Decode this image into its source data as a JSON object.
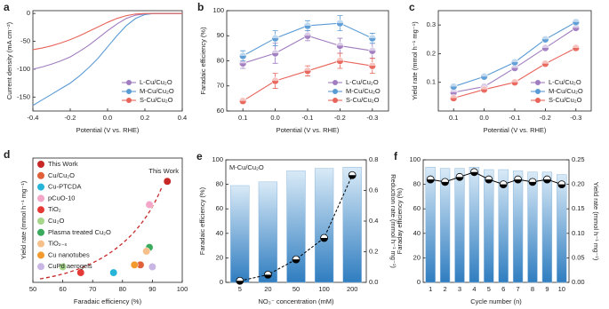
{
  "chart_data": [
    {
      "type": "line",
      "label": "a",
      "xlabel": "Potential (V vs. RHE)",
      "ylabel": "Current density (mA cm⁻²)",
      "x": [
        -0.4,
        -0.35,
        -0.3,
        -0.25,
        -0.2,
        -0.15,
        -0.1,
        -0.05,
        0,
        0.05,
        0.1,
        0.15,
        0.2,
        0.25,
        0.3,
        0.35,
        0.4
      ],
      "xlim": [
        -0.4,
        0.4
      ],
      "xticks": [
        -0.4,
        -0.2,
        {
          "value": 0,
          "label": "0.0"
        },
        0.2,
        0.4
      ],
      "ylim": [
        -175,
        5
      ],
      "yticks": [
        0,
        -50,
        -100,
        -150
      ],
      "legend": "lower right",
      "series": [
        {
          "name": "L-Cu/Cu₂O",
          "color": "#a07cc0",
          "values": [
            -100,
            -96,
            -91,
            -85,
            -78,
            -68,
            -57,
            -44,
            -31,
            -19,
            -9,
            -3,
            -1,
            0,
            0,
            0,
            0
          ]
        },
        {
          "name": "M-Cu/Cu₂O",
          "color": "#5b9bd5",
          "values": [
            -165,
            -155,
            -145,
            -135,
            -125,
            -112,
            -97,
            -80,
            -60,
            -40,
            -22,
            -9,
            -2,
            0,
            0,
            0,
            0
          ]
        },
        {
          "name": "S-Cu/Cu₂O",
          "color": "#e8645a",
          "values": [
            -65,
            -62,
            -58,
            -53,
            -47,
            -40,
            -32,
            -24,
            -16,
            -9,
            -4,
            -1,
            0,
            0,
            0,
            0,
            0
          ]
        }
      ]
    },
    {
      "type": "line",
      "label": "b",
      "xlabel": "Potential (V vs. RHE)",
      "ylabel": "Faradaic efficiency (%)",
      "categories": [
        "0.1",
        "0.0",
        "-0.1",
        "-0.2",
        "-0.3"
      ],
      "ylim": [
        60,
        100
      ],
      "yticks": [
        60,
        70,
        80,
        90,
        100
      ],
      "markers": true,
      "legend": "lower right",
      "series": [
        {
          "name": "L-Cu/Cu₂O",
          "color": "#a07cc0",
          "values": [
            79,
            83,
            90,
            86,
            84
          ],
          "errors": [
            2,
            4,
            2,
            3,
            3
          ]
        },
        {
          "name": "M-Cu/Cu₂O",
          "color": "#5b9bd5",
          "values": [
            82,
            89,
            94,
            95,
            89
          ],
          "errors": [
            2,
            3,
            2,
            3,
            2
          ]
        },
        {
          "name": "S-Cu/Cu₂O",
          "color": "#e8645a",
          "values": [
            64,
            72,
            76,
            80,
            78
          ],
          "errors": [
            1,
            3,
            2,
            3,
            3
          ]
        }
      ]
    },
    {
      "type": "line",
      "label": "c",
      "xlabel": "Potential (V vs. RHE)",
      "ylabel": "Yield rate (mmol h⁻¹ mg⁻¹)",
      "categories": [
        "0.1",
        "0.0",
        "-0.1",
        "-0.2",
        "-0.3"
      ],
      "ylim": [
        0,
        0.35
      ],
      "yticks": [
        0.1,
        0.2,
        0.3
      ],
      "markers": true,
      "legend": "lower right",
      "series": [
        {
          "name": "L-Cu/Cu₂O",
          "color": "#a07cc0",
          "values": [
            0.065,
            0.085,
            0.15,
            0.22,
            0.29
          ]
        },
        {
          "name": "M-Cu/Cu₂O",
          "color": "#5b9bd5",
          "values": [
            0.085,
            0.12,
            0.17,
            0.25,
            0.31
          ]
        },
        {
          "name": "S-Cu/Cu₂O",
          "color": "#e8645a",
          "values": [
            0.045,
            0.075,
            0.1,
            0.165,
            0.22
          ]
        }
      ]
    },
    {
      "type": "scatter",
      "label": "d",
      "xlabel": "Faradaic efficiency (%)",
      "ylabel": "Yield rate (mmol h⁻¹ mg⁻¹)",
      "xlim": [
        50,
        100
      ],
      "xticks": [
        50,
        60,
        70,
        80,
        90,
        100
      ],
      "ylim": [
        0,
        0.32
      ],
      "legend": "upper left",
      "annotation": "This Work",
      "series": [
        {
          "name": "This Work",
          "color": "#c62828",
          "x": [
            95
          ],
          "values": [
            0.26
          ]
        },
        {
          "name": "Cu/Cu₂O",
          "color": "#e0603a",
          "x": [
            86
          ],
          "values": [
            0.045
          ]
        },
        {
          "name": "Cu-PTCDA",
          "color": "#26b5d9",
          "x": [
            77
          ],
          "values": [
            0.025
          ]
        },
        {
          "name": "pCuO-10",
          "color": "#f4a6c8",
          "x": [
            89
          ],
          "values": [
            0.2
          ]
        },
        {
          "name": "TiO₂",
          "color": "#e53935",
          "x": [
            66
          ],
          "values": [
            0.025
          ]
        },
        {
          "name": "Cu₂O",
          "color": "#a5d68a",
          "x": [
            60
          ],
          "values": [
            0.04
          ]
        },
        {
          "name": "Plasma treated Cu₂O",
          "color": "#3aaa5c",
          "x": [
            89
          ],
          "values": [
            0.09
          ]
        },
        {
          "name": "TiO₂₋ₓ",
          "color": "#f6c08a",
          "x": [
            88
          ],
          "values": [
            0.08
          ]
        },
        {
          "name": "Cu nanotubes",
          "color": "#f39a2e",
          "x": [
            84
          ],
          "values": [
            0.045
          ]
        },
        {
          "name": "CuPd aerogels",
          "color": "#c9b6e4",
          "x": [
            90
          ],
          "values": [
            0.04
          ]
        }
      ]
    },
    {
      "type": "bar",
      "label": "e",
      "xlabel": "NO₃⁻ concentration (mM)",
      "ylabel": "Faradaic efficiency (%)",
      "y2label": "Reduction rate (mmol h⁻¹ mg⁻¹)",
      "annotation": "M-Cu/Cu₂O",
      "categories": [
        "5",
        "20",
        "50",
        "100",
        "200"
      ],
      "ylim": [
        0,
        100
      ],
      "yticks": [
        0,
        20,
        40,
        60,
        80,
        100
      ],
      "y2lim": [
        0,
        0.8
      ],
      "y2ticks": [
        {
          "value": 0,
          "label": "0.0"
        },
        0.2,
        0.4,
        0.6,
        0.8
      ],
      "series": [
        {
          "color": "#3a86c8",
          "values": [
            79,
            82,
            91,
            93,
            94
          ]
        },
        {
          "color": "#000000",
          "axis": "y2",
          "linestyle": "dashed",
          "values": [
            0.01,
            0.05,
            0.15,
            0.29,
            0.7
          ]
        }
      ]
    },
    {
      "type": "bar",
      "label": "f",
      "xlabel": "Cycle number (n)",
      "ylabel": "Faraday efficiency (%)",
      "y2label": "Yield rate (mmol h⁻¹ mg⁻¹)",
      "categories": [
        "1",
        "2",
        "3",
        "4",
        "5",
        "6",
        "7",
        "8",
        "9",
        "10"
      ],
      "ylim": [
        0,
        100
      ],
      "yticks": [
        0,
        20,
        40,
        60,
        80,
        100
      ],
      "y2lim": [
        0,
        0.25
      ],
      "y2ticks": [
        {
          "value": 0,
          "label": "0.00"
        },
        0.05,
        {
          "value": 0.1,
          "label": "0.10"
        },
        0.15,
        {
          "value": 0.2,
          "label": "0.20"
        },
        0.25
      ],
      "series": [
        {
          "color": "#3a86c8",
          "values": [
            94,
            93,
            93,
            94,
            92,
            92,
            91,
            90,
            90,
            88
          ]
        },
        {
          "color": "#000000",
          "axis": "y2",
          "linestyle": "solid",
          "values": [
            0.21,
            0.205,
            0.215,
            0.225,
            0.21,
            0.2,
            0.21,
            0.205,
            0.21,
            0.2
          ]
        }
      ]
    }
  ]
}
